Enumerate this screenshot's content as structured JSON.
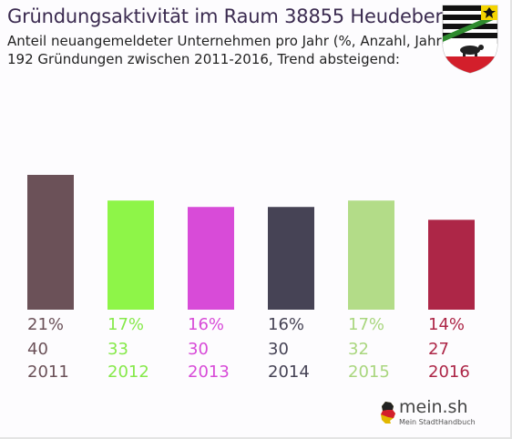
{
  "header": {
    "title": "Gründungsaktivität im Raum 38855 Heudeber",
    "subtitle_line1": "Anteil neuangemeldeter Unternehmen pro Jahr (%, Anzahl, Jahr)",
    "subtitle_line2": "192 Gründungen zwischen 2011-2016, Trend absteigend:"
  },
  "logo": {
    "text": "mein.sh",
    "tagline": "Mein StadtHandbuch"
  },
  "chart_data": {
    "type": "bar",
    "categories": [
      "2011",
      "2012",
      "2013",
      "2014",
      "2015",
      "2016"
    ],
    "values": [
      21,
      17,
      16,
      16,
      17,
      14
    ],
    "percent_labels": [
      "21%",
      "17%",
      "16%",
      "16%",
      "17%",
      "14%"
    ],
    "counts": [
      "40",
      "33",
      "30",
      "30",
      "32",
      "27"
    ],
    "colors": [
      "#6b5158",
      "#8ef548",
      "#d84bd8",
      "#464355",
      "#b3dc88",
      "#ad2647"
    ],
    "ylim": [
      0,
      21
    ],
    "grid": false,
    "legend": "none"
  }
}
